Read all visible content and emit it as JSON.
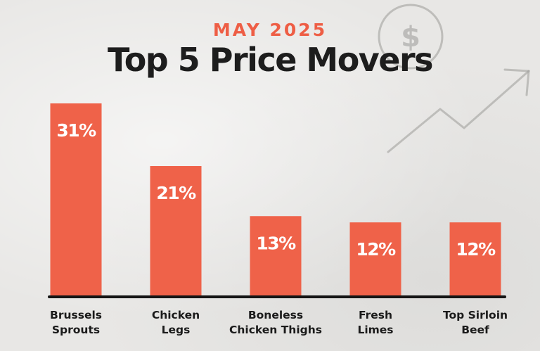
{
  "header": {
    "subtitle": "MAY 2025",
    "title": "Top 5 Price Movers"
  },
  "decoration": {
    "coin_icon": "dollar-coin-icon",
    "coin_symbol": "$",
    "trend_icon": "trend-up-arrow-icon"
  },
  "colors": {
    "accent": "#ee5e45",
    "bar": "#ef6249",
    "text": "#1d1d1d",
    "background": "#e8e7e5"
  },
  "chart_data": {
    "type": "bar",
    "categories": [
      [
        "Brussels",
        "Sprouts"
      ],
      [
        "Chicken",
        "Legs"
      ],
      [
        "Boneless",
        "Chicken Thighs"
      ],
      [
        "Fresh",
        "Limes"
      ],
      [
        "Top Sirloin",
        "Beef"
      ]
    ],
    "values": [
      31,
      21,
      13,
      12,
      12
    ],
    "value_labels": [
      "31%",
      "21%",
      "13%",
      "12%",
      "12%"
    ],
    "unit": "%",
    "ylim": [
      0,
      31
    ],
    "grid": false,
    "legend": "none"
  }
}
